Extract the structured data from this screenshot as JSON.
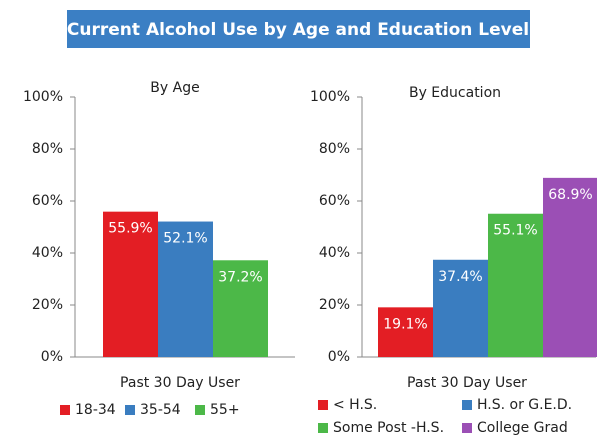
{
  "title": "Current Alcohol Use by Age and Education Level",
  "chart_data": [
    {
      "type": "bar",
      "subtitle": "By Age",
      "categories": [
        "Past 30 Day User"
      ],
      "series": [
        {
          "name": "18-34",
          "color": "#e31e24",
          "values": [
            55.9
          ],
          "value_labels": [
            "55.9%"
          ]
        },
        {
          "name": "35-54",
          "color": "#3a7dc0",
          "values": [
            52.1
          ],
          "value_labels": [
            "52.1%"
          ]
        },
        {
          "name": "55+",
          "color": "#4cb848",
          "values": [
            37.2
          ],
          "value_labels": [
            "37.2%"
          ]
        }
      ],
      "ylim": [
        0,
        100
      ],
      "yticks": [
        {
          "value": 0,
          "label": "0%"
        },
        {
          "value": 20,
          "label": "20%"
        },
        {
          "value": 40,
          "label": "40%"
        },
        {
          "value": 60,
          "label": "60%"
        },
        {
          "value": 80,
          "label": "80%"
        },
        {
          "value": 100,
          "label": "100%"
        }
      ]
    },
    {
      "type": "bar",
      "subtitle": "By Education",
      "categories": [
        "Past 30 Day User"
      ],
      "series": [
        {
          "name": "< H.S.",
          "color": "#e31e24",
          "values": [
            19.1
          ],
          "value_labels": [
            "19.1%"
          ]
        },
        {
          "name": "H.S. or G.E.D.",
          "color": "#3a7dc0",
          "values": [
            37.4
          ],
          "value_labels": [
            "37.4%"
          ]
        },
        {
          "name": "Some Post -H.S.",
          "color": "#4cb848",
          "values": [
            55.1
          ],
          "value_labels": [
            "55.1%"
          ]
        },
        {
          "name": "College Grad",
          "color": "#9b4fb5",
          "values": [
            68.9
          ],
          "value_labels": [
            "68.9%"
          ]
        }
      ],
      "ylim": [
        0,
        100
      ],
      "yticks": [
        {
          "value": 0,
          "label": "0%"
        },
        {
          "value": 20,
          "label": "20%"
        },
        {
          "value": 40,
          "label": "40%"
        },
        {
          "value": 60,
          "label": "60%"
        },
        {
          "value": 80,
          "label": "80%"
        },
        {
          "value": 100,
          "label": "100%"
        }
      ]
    }
  ]
}
